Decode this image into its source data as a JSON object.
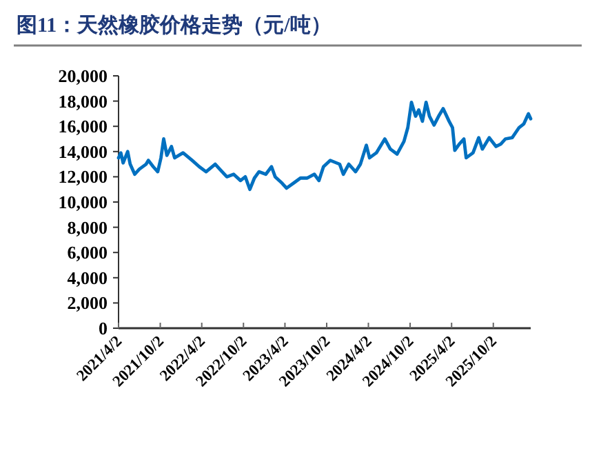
{
  "chart_data": {
    "type": "line",
    "title": "图11：天然橡胶价格走势（元/吨）",
    "x": [
      "2021-04-02",
      "2021-04-12",
      "2021-04-22",
      "2021-05-12",
      "2021-05-23",
      "2021-06-12",
      "2021-07-02",
      "2021-08-01",
      "2021-08-11",
      "2021-09-01",
      "2021-09-21",
      "2021-10-05",
      "2021-10-17",
      "2021-10-31",
      "2021-11-20",
      "2021-12-04",
      "2022-01-10",
      "2022-02-19",
      "2022-03-22",
      "2022-04-21",
      "2022-05-31",
      "2022-06-20",
      "2022-07-21",
      "2022-08-20",
      "2022-09-19",
      "2022-10-10",
      "2022-10-30",
      "2022-11-19",
      "2022-12-09",
      "2023-01-08",
      "2023-02-02",
      "2023-02-18",
      "2023-03-20",
      "2023-04-09",
      "2023-05-10",
      "2023-06-09",
      "2023-07-09",
      "2023-08-09",
      "2023-08-29",
      "2023-09-18",
      "2023-10-18",
      "2023-11-28",
      "2023-12-14",
      "2024-01-07",
      "2024-02-06",
      "2024-02-27",
      "2024-03-24",
      "2024-04-07",
      "2024-05-07",
      "2024-06-13",
      "2024-07-07",
      "2024-08-06",
      "2024-09-05",
      "2024-09-22",
      "2024-10-08",
      "2024-10-26",
      "2024-11-09",
      "2024-11-25",
      "2024-12-11",
      "2024-12-26",
      "2025-01-15",
      "2025-02-04",
      "2025-02-24",
      "2025-03-22",
      "2025-04-06",
      "2025-04-16",
      "2025-05-06",
      "2025-05-26",
      "2025-06-05",
      "2025-07-05",
      "2025-07-30",
      "2025-08-15",
      "2025-09-14",
      "2025-10-14",
      "2025-11-04",
      "2025-11-24",
      "2025-12-24",
      "2026-01-23",
      "2026-02-13",
      "2026-03-05",
      "2026-03-15"
    ],
    "series": [
      {
        "color": "#0070c0",
        "values": [
          13500,
          13900,
          13100,
          14000,
          13000,
          12200,
          12600,
          13000,
          13300,
          12800,
          12400,
          13500,
          15000,
          13700,
          14400,
          13500,
          13900,
          13300,
          12800,
          12400,
          13000,
          12600,
          12000,
          12200,
          11700,
          12000,
          11000,
          11900,
          12400,
          12200,
          12800,
          12000,
          11500,
          11100,
          11500,
          11900,
          11900,
          12200,
          11700,
          12800,
          13300,
          13000,
          12200,
          13000,
          12400,
          13000,
          14500,
          13500,
          13900,
          15000,
          14200,
          13800,
          14800,
          15900,
          17900,
          16800,
          17300,
          16400,
          17900,
          16800,
          16100,
          16800,
          17400,
          16400,
          15900,
          14100,
          14600,
          15000,
          13500,
          13900,
          15100,
          14200,
          15100,
          14400,
          14600,
          15000,
          15100,
          15900,
          16200,
          17000,
          16600
        ]
      }
    ],
    "xlim": [
      "2021-04-02",
      "2026-03-15"
    ],
    "xticks": [
      {
        "value": "2021-04-02",
        "label": "2021/4/2"
      },
      {
        "value": "2021-10-02",
        "label": "2021/10/2"
      },
      {
        "value": "2022-04-02",
        "label": "2022/4/2"
      },
      {
        "value": "2022-10-02",
        "label": "2022/10/2"
      },
      {
        "value": "2023-04-02",
        "label": "2023/4/2"
      },
      {
        "value": "2023-10-02",
        "label": "2023/10/2"
      },
      {
        "value": "2024-04-02",
        "label": "2024/4/2"
      },
      {
        "value": "2024-10-02",
        "label": "2024/10/2"
      },
      {
        "value": "2025-04-02",
        "label": "2025/4/2"
      },
      {
        "value": "2025-10-02",
        "label": "2025/10/2"
      }
    ],
    "ylim": [
      0,
      20000
    ],
    "yticks": [
      {
        "value": 0,
        "label": "0"
      },
      {
        "value": 2000,
        "label": "2,000"
      },
      {
        "value": 4000,
        "label": "4,000"
      },
      {
        "value": 6000,
        "label": "6,000"
      },
      {
        "value": 8000,
        "label": "8,000"
      },
      {
        "value": 10000,
        "label": "10,000"
      },
      {
        "value": 12000,
        "label": "12,000"
      },
      {
        "value": 14000,
        "label": "14,000"
      },
      {
        "value": 16000,
        "label": "16,000"
      },
      {
        "value": 18000,
        "label": "18,000"
      },
      {
        "value": 20000,
        "label": "20,000"
      }
    ],
    "grid": false,
    "line_style": "solid",
    "marker": "none"
  }
}
